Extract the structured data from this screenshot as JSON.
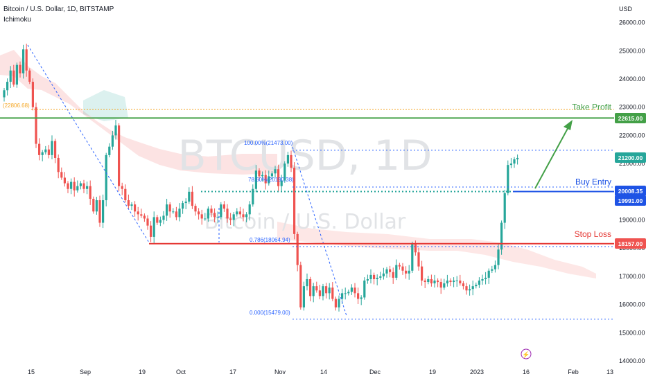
{
  "header": {
    "symbol_line": "Bitcoin / U.S. Dollar, 1D, BITSTAMP",
    "indicator": "Ichimoku"
  },
  "watermark": {
    "ticker": "BTCUSD, 1D",
    "name": "Bitcoin / U.S. Dollar"
  },
  "price_axis": {
    "currency": "USD",
    "ticks": [
      "26000.00",
      "25000.00",
      "24000.00",
      "23000.00",
      "22000.00",
      "21000.00",
      "19000.00",
      "18000.00",
      "17000.00",
      "16000.00",
      "15000.00",
      "14000.00"
    ]
  },
  "time_axis": {
    "labels": [
      "15",
      "Sep",
      "19",
      "Oct",
      "17",
      "Nov",
      "14",
      "Dec",
      "19",
      "2023",
      "16",
      "Feb",
      "13"
    ]
  },
  "annotations": {
    "take_profit": "Take Profit",
    "buy_entry": "Buy Entry",
    "stop_loss": "Stop Loss",
    "fib_100": "100.00%(21473.00)",
    "fib_786_upper": "78.60%(20190.38)",
    "fib_786_lower": "0.786(18064.94)",
    "fib_0": "0.000(15479.00)",
    "fib_left": "(22806.68)"
  },
  "price_badges": [
    {
      "value": "22615.00",
      "color": "#43a047"
    },
    {
      "value": "21200.00",
      "color": "#26a69a"
    },
    {
      "value": "20008.35",
      "color": "#1e53e5"
    },
    {
      "value": "19991.00",
      "color": "#1e53e5"
    },
    {
      "value": "18157.00",
      "color": "#ef5350"
    }
  ],
  "colors": {
    "up": "#26a69a",
    "down": "#ef5350",
    "take_profit": "#43a047",
    "buy": "#1e53e5",
    "stop": "#e53935",
    "fib": "#2962ff",
    "orange": "#f5a623"
  },
  "chart_data": {
    "type": "candlestick",
    "title": "Bitcoin / U.S. Dollar, 1D, BITSTAMP",
    "ylabel": "USD",
    "ylim": [
      14000,
      26500
    ],
    "levels": {
      "take_profit": 22615,
      "buy_entry_1": 20008.35,
      "buy_entry_2": 19991,
      "stop_loss": 18157,
      "last_price": 21200,
      "fib_100": 21473,
      "fib_0": 15479
    },
    "closes": [
      23600,
      23900,
      24300,
      23800,
      24500,
      24200,
      25050,
      24300,
      23900,
      23000,
      21700,
      21300,
      21400,
      21500,
      21300,
      21800,
      21200,
      20700,
      20500,
      20300,
      20100,
      20350,
      20050,
      20200,
      20300,
      20100,
      20200,
      19750,
      19300,
      19700,
      18900,
      19700,
      21300,
      21600,
      22000,
      22350,
      20200,
      20100,
      19700,
      19500,
      19550,
      19300,
      19200,
      19150,
      19050,
      18800,
      18400,
      19100,
      18900,
      19000,
      19150,
      19550,
      19300,
      19300,
      19100,
      19400,
      19600,
      19650,
      20000,
      19500,
      19300,
      19200,
      19050,
      19050,
      19400,
      19250,
      19100,
      19100,
      19550,
      19400,
      19050,
      19000,
      19200,
      19300,
      19200,
      19100,
      19200,
      19550,
      20100,
      20750,
      20550,
      20600,
      20300,
      20550,
      20650,
      20800,
      20200,
      20400,
      21000,
      21300,
      20850,
      18500,
      17400,
      15900,
      16650,
      16900,
      16300,
      16650,
      16500,
      16300,
      16650,
      16400,
      16600,
      16200,
      15900,
      16200,
      16400,
      16400,
      16450,
      16600,
      16400,
      16200,
      16250,
      16850,
      16900,
      17050,
      16900,
      16950,
      17000,
      17100,
      17250,
      17150,
      16950,
      17400,
      17350,
      17200,
      17100,
      17200,
      18150,
      17850,
      17350,
      16850,
      16800,
      16900,
      16750,
      16850,
      16800,
      16600,
      16750,
      16850,
      16800,
      16850,
      16850,
      16750,
      16650,
      16500,
      16550,
      16650,
      16700,
      16850,
      16900,
      16950,
      17200,
      17250,
      17400,
      17950,
      18900,
      19950,
      20950,
      21000,
      21150,
      21200
    ]
  }
}
